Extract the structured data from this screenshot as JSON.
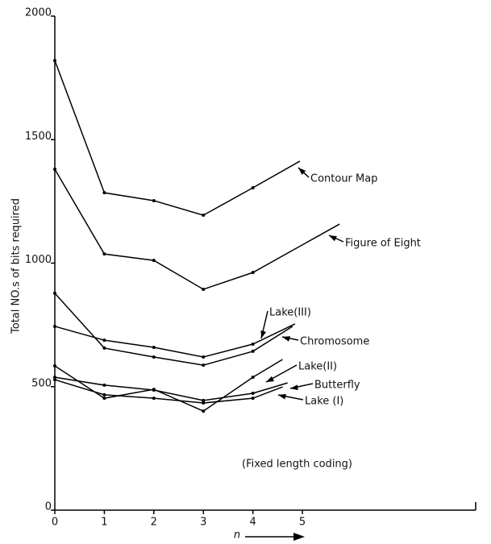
{
  "chart_data": {
    "type": "line",
    "ylabel": "Total NO.s of bits required",
    "xlabel": "n",
    "annotation": "(Fixed length coding)",
    "xlim": [
      0,
      8.5
    ],
    "ylim": [
      0,
      2000
    ],
    "xticks": [
      0,
      1,
      2,
      3,
      4,
      5
    ],
    "yticks": [
      0,
      500,
      1000,
      1500,
      2000
    ],
    "series": [
      {
        "name": "Contour Map",
        "color": "#000000",
        "x": [
          0,
          1,
          2,
          3,
          4,
          4.95
        ],
        "values": [
          1820,
          1285,
          1253,
          1194,
          1305,
          1413
        ]
      },
      {
        "name": "Figure of Eight",
        "color": "#000000",
        "x": [
          0,
          1,
          2,
          3,
          4,
          5.75
        ],
        "values": [
          1380,
          1037,
          1011,
          894,
          962,
          1158
        ]
      },
      {
        "name": "Lake(III)",
        "color": "#000000",
        "x": [
          0,
          1,
          2,
          3,
          4,
          4.8
        ],
        "values": [
          878,
          656,
          620,
          587,
          643,
          744
        ]
      },
      {
        "name": "Chromosome",
        "color": "#000000",
        "x": [
          0,
          1,
          2,
          3,
          4,
          4.85
        ],
        "values": [
          744,
          688,
          659,
          620,
          672,
          754
        ]
      },
      {
        "name": "Lake(II)",
        "color": "#000000",
        "x": [
          0,
          1,
          2,
          3,
          4,
          4.6
        ],
        "values": [
          584,
          453,
          489,
          401,
          538,
          610
        ]
      },
      {
        "name": "Butterfly",
        "color": "#000000",
        "x": [
          0,
          1,
          2,
          3,
          4,
          4.7
        ],
        "values": [
          538,
          506,
          486,
          444,
          473,
          515
        ]
      },
      {
        "name": "Lake (I)",
        "color": "#000000",
        "x": [
          0,
          1,
          2,
          3,
          4,
          4.6
        ],
        "values": [
          528,
          467,
          453,
          434,
          453,
          499
        ]
      }
    ]
  }
}
